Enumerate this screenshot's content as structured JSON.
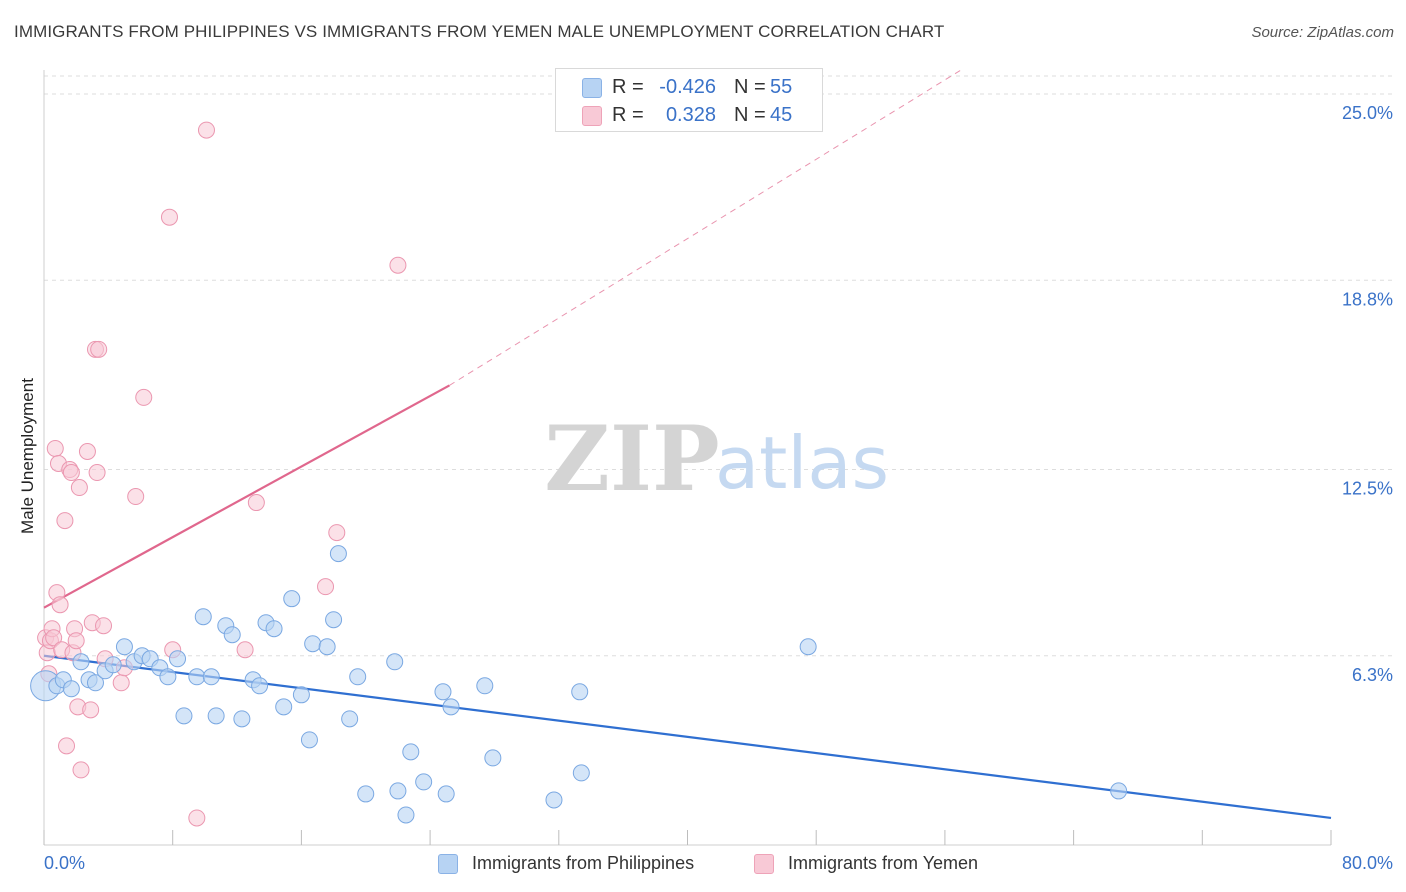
{
  "header": {
    "title": "IMMIGRANTS FROM PHILIPPINES VS IMMIGRANTS FROM YEMEN MALE UNEMPLOYMENT CORRELATION CHART",
    "source": "Source: ZipAtlas.com"
  },
  "watermark": {
    "zip": "ZIP",
    "atlas": "atlas"
  },
  "stats": {
    "r_label": "R =",
    "n_label": "N =",
    "philippines": {
      "r": "-0.426",
      "n": "55"
    },
    "yemen": {
      "r": "0.328",
      "n": "45"
    }
  },
  "legend": {
    "philippines": "Immigrants from Philippines",
    "yemen": "Immigrants from Yemen"
  },
  "colors": {
    "philippines_fill": "#b7d3f3",
    "philippines_stroke": "#7aa8e2",
    "philippines_line": "#2f6fd1",
    "yemen_fill": "#f8c9d6",
    "yemen_stroke": "#eb97b0",
    "yemen_line": "#e0678d",
    "axis_text": "#3a72c8",
    "grid": "#dddddd"
  },
  "chart_data": {
    "type": "scatter",
    "title": "IMMIGRANTS FROM PHILIPPINES VS IMMIGRANTS FROM YEMEN MALE UNEMPLOYMENT CORRELATION CHART",
    "xlabel": "",
    "ylabel": "Male Unemployment",
    "xlim": [
      0,
      80
    ],
    "ylim": [
      0,
      25.8
    ],
    "x_tick_labels": [
      "0.0%",
      "80.0%"
    ],
    "y_ticks": [
      6.3,
      12.5,
      18.8,
      25.0
    ],
    "y_tick_labels": [
      "6.3%",
      "12.5%",
      "18.8%",
      "25.0%"
    ],
    "grid": true,
    "series": [
      {
        "name": "Immigrants from Philippines",
        "points": [
          [
            0.1,
            5.3
          ],
          [
            0.8,
            5.3
          ],
          [
            1.2,
            5.5
          ],
          [
            1.7,
            5.2
          ],
          [
            2.3,
            6.1
          ],
          [
            2.8,
            5.5
          ],
          [
            3.2,
            5.4
          ],
          [
            3.8,
            5.8
          ],
          [
            4.3,
            6.0
          ],
          [
            5.0,
            6.6
          ],
          [
            5.6,
            6.1
          ],
          [
            6.1,
            6.3
          ],
          [
            6.6,
            6.2
          ],
          [
            7.2,
            5.9
          ],
          [
            7.7,
            5.6
          ],
          [
            8.3,
            6.2
          ],
          [
            8.7,
            4.3
          ],
          [
            9.5,
            5.6
          ],
          [
            9.9,
            7.6
          ],
          [
            10.4,
            5.6
          ],
          [
            10.7,
            4.3
          ],
          [
            11.3,
            7.3
          ],
          [
            11.7,
            7.0
          ],
          [
            12.3,
            4.2
          ],
          [
            13.0,
            5.5
          ],
          [
            13.4,
            5.3
          ],
          [
            13.8,
            7.4
          ],
          [
            14.3,
            7.2
          ],
          [
            14.9,
            4.6
          ],
          [
            15.4,
            8.2
          ],
          [
            16.0,
            5.0
          ],
          [
            16.5,
            3.5
          ],
          [
            16.7,
            6.7
          ],
          [
            17.6,
            6.6
          ],
          [
            18.0,
            7.5
          ],
          [
            18.3,
            9.7
          ],
          [
            19.0,
            4.2
          ],
          [
            19.5,
            5.6
          ],
          [
            20.0,
            1.7
          ],
          [
            21.8,
            6.1
          ],
          [
            22.0,
            1.8
          ],
          [
            22.5,
            1.0
          ],
          [
            22.8,
            3.1
          ],
          [
            23.6,
            2.1
          ],
          [
            24.8,
            5.1
          ],
          [
            25.0,
            1.7
          ],
          [
            25.3,
            4.6
          ],
          [
            27.4,
            5.3
          ],
          [
            27.9,
            2.9
          ],
          [
            31.7,
            1.5
          ],
          [
            33.3,
            5.1
          ],
          [
            33.4,
            2.4
          ],
          [
            47.5,
            6.6
          ],
          [
            66.8,
            1.8
          ]
        ]
      },
      {
        "name": "Immigrants from Yemen",
        "points": [
          [
            0.1,
            6.9
          ],
          [
            0.2,
            6.4
          ],
          [
            0.3,
            5.7
          ],
          [
            0.4,
            6.8
          ],
          [
            0.5,
            7.2
          ],
          [
            0.6,
            6.9
          ],
          [
            0.7,
            13.2
          ],
          [
            0.8,
            8.4
          ],
          [
            0.9,
            12.7
          ],
          [
            1.0,
            8.0
          ],
          [
            1.1,
            6.5
          ],
          [
            1.3,
            10.8
          ],
          [
            1.4,
            3.3
          ],
          [
            1.6,
            12.5
          ],
          [
            1.7,
            12.4
          ],
          [
            1.8,
            6.4
          ],
          [
            1.9,
            7.2
          ],
          [
            2.0,
            6.8
          ],
          [
            2.1,
            4.6
          ],
          [
            2.2,
            11.9
          ],
          [
            2.3,
            2.5
          ],
          [
            2.7,
            13.1
          ],
          [
            2.9,
            4.5
          ],
          [
            3.0,
            7.4
          ],
          [
            3.2,
            16.5
          ],
          [
            3.3,
            12.4
          ],
          [
            3.4,
            16.5
          ],
          [
            3.7,
            7.3
          ],
          [
            3.8,
            6.2
          ],
          [
            4.8,
            5.4
          ],
          [
            5.0,
            5.9
          ],
          [
            5.7,
            11.6
          ],
          [
            6.2,
            14.9
          ],
          [
            7.8,
            20.9
          ],
          [
            8.0,
            6.5
          ],
          [
            9.5,
            0.9
          ],
          [
            10.1,
            23.8
          ],
          [
            12.5,
            6.5
          ],
          [
            13.2,
            11.4
          ],
          [
            17.5,
            8.6
          ],
          [
            18.2,
            10.4
          ],
          [
            22.0,
            19.3
          ]
        ]
      }
    ],
    "trend_lines": [
      {
        "series": "Immigrants from Philippines",
        "x0": 0,
        "y0": 6.3,
        "x1": 80,
        "y1": 0.9,
        "style": "solid"
      },
      {
        "series": "Immigrants from Yemen",
        "x0": 0,
        "y0": 7.9,
        "x1": 25.2,
        "y1": 15.3,
        "style": "solid"
      },
      {
        "series": "Immigrants from Yemen",
        "x0": 25.2,
        "y0": 15.3,
        "x1": 57.0,
        "y1": 25.8,
        "style": "dashed"
      }
    ]
  }
}
